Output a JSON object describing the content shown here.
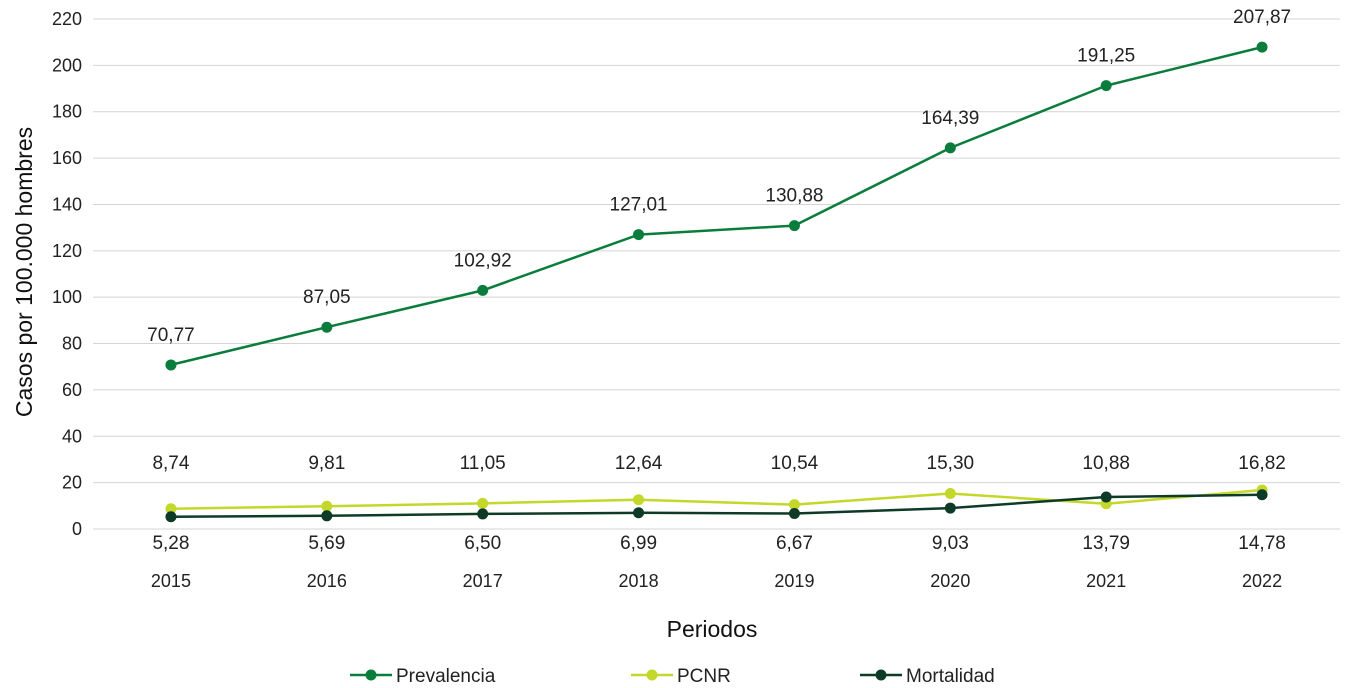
{
  "chart_data": {
    "type": "line",
    "title": "",
    "xlabel": "Periodos",
    "ylabel": "Casos por 100.000 hombres",
    "ylim": [
      0,
      220
    ],
    "yticks": [
      "0",
      "20",
      "40",
      "60",
      "80",
      "100",
      "120",
      "140",
      "160",
      "180",
      "200",
      "220"
    ],
    "categories": [
      "2015",
      "2016",
      "2017",
      "2018",
      "2019",
      "2020",
      "2021",
      "2022"
    ],
    "grid": true,
    "legend_position": "bottom",
    "series": [
      {
        "name": "Prevalencia",
        "color": "#0a7d3c",
        "values": [
          70.77,
          87.05,
          102.92,
          127.01,
          130.88,
          164.39,
          191.25,
          207.87
        ],
        "labels": [
          "70,77",
          "87,05",
          "102,92",
          "127,01",
          "130,88",
          "164,39",
          "191,25",
          "207,87"
        ]
      },
      {
        "name": "PCNR",
        "color": "#c3d82a",
        "values": [
          8.74,
          9.81,
          11.05,
          12.64,
          10.54,
          15.3,
          10.88,
          16.82
        ],
        "labels": [
          "8,74",
          "9,81",
          "11,05",
          "12,64",
          "10,54",
          "15,30",
          "10,88",
          "16,82"
        ]
      },
      {
        "name": "Mortalidad",
        "color": "#0e3b27",
        "values": [
          5.28,
          5.69,
          6.5,
          6.99,
          6.67,
          9.03,
          13.79,
          14.78
        ],
        "labels": [
          "5,28",
          "5,69",
          "6,50",
          "6,99",
          "6,67",
          "9,03",
          "13,79",
          "14,78"
        ]
      }
    ]
  }
}
